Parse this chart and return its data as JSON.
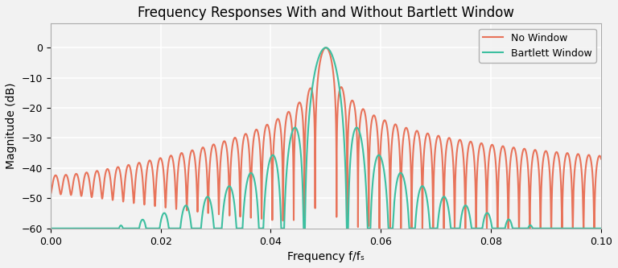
{
  "title": "Frequency Responses With and Without Bartlett Window",
  "xlabel": "Frequency f/fₛ",
  "ylabel": "Magnitude (dB)",
  "xlim": [
    0.0,
    0.1
  ],
  "ylim": [
    -60,
    8
  ],
  "yticks": [
    0,
    -10,
    -20,
    -30,
    -40,
    -50,
    -60
  ],
  "xticks": [
    0.0,
    0.02,
    0.04,
    0.06,
    0.08,
    0.1
  ],
  "color_no_window": "#E8735A",
  "color_bartlett": "#3DBFA0",
  "N": 512,
  "f0": 0.05,
  "nfft": 131072,
  "legend_no_window": "No Window",
  "legend_bartlett": "Bartlett Window",
  "linewidth": 1.5,
  "background_color": "#F2F2F2",
  "grid_color": "#FFFFFF"
}
